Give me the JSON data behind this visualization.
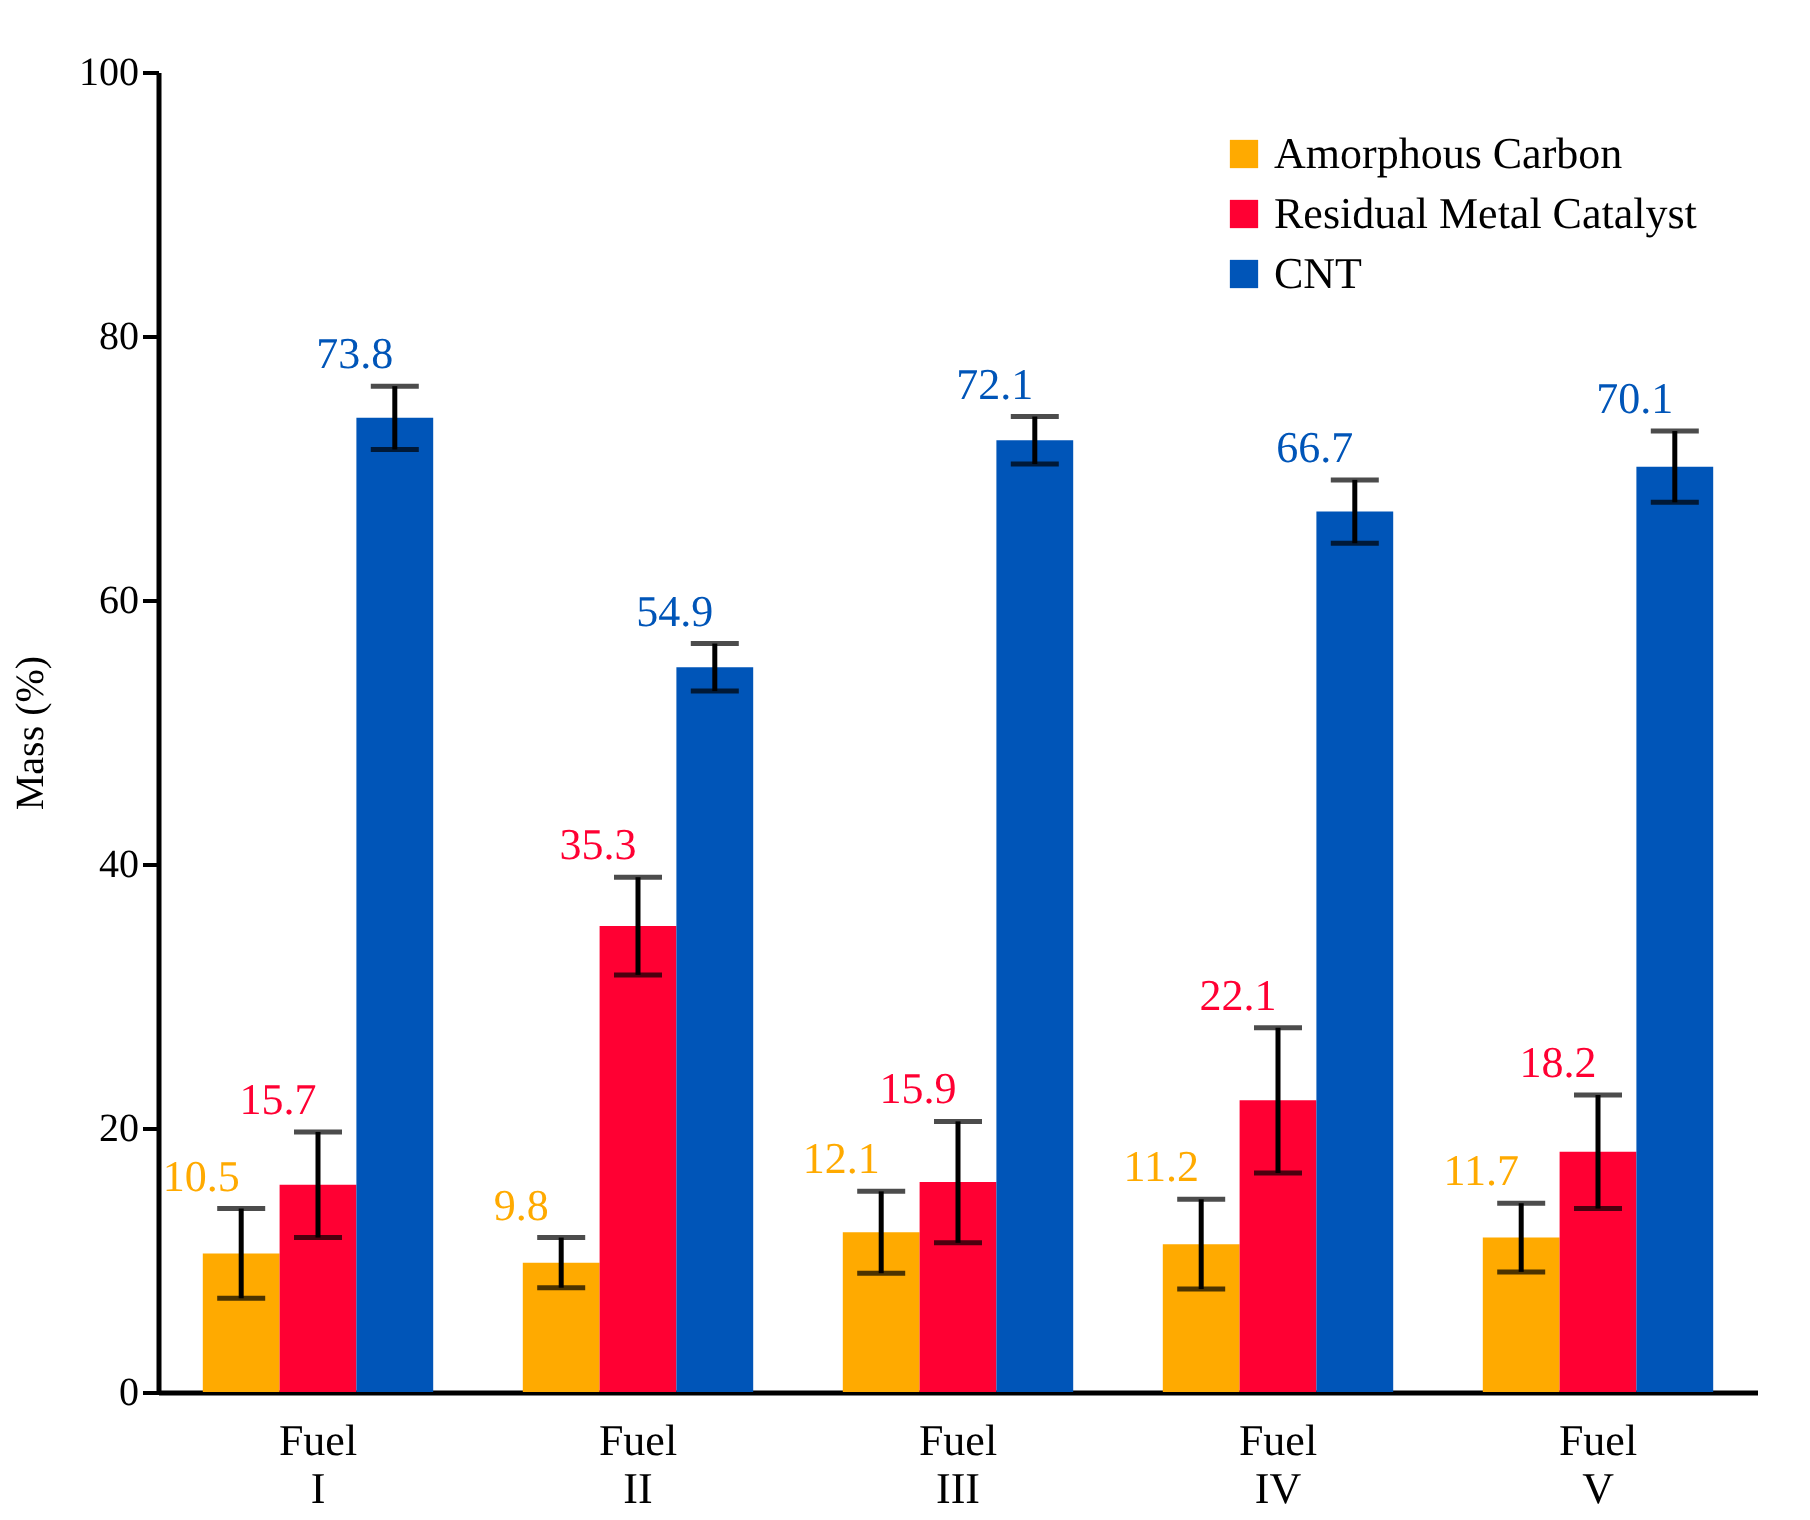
{
  "chart_data": {
    "type": "bar",
    "ylabel": "Mass (%)",
    "categories": [
      "Fuel I",
      "Fuel II",
      "Fuel III",
      "Fuel IV",
      "Fuel V"
    ],
    "series": [
      {
        "name": "Amorphous Carbon",
        "color": "#ffaa00",
        "values": [
          10.5,
          9.8,
          12.1,
          11.2,
          11.7
        ],
        "errors": [
          3.4,
          1.9,
          3.1,
          3.4,
          2.6
        ]
      },
      {
        "name": "Residual Metal Catalyst",
        "color": "#ff0033",
        "values": [
          15.7,
          35.3,
          15.9,
          22.1,
          18.2
        ],
        "errors": [
          4.0,
          3.7,
          4.6,
          5.5,
          4.3
        ]
      },
      {
        "name": "CNT",
        "color": "#0055b8",
        "values": [
          73.8,
          54.9,
          72.1,
          66.7,
          70.1
        ],
        "errors": [
          2.4,
          1.8,
          1.8,
          2.4,
          2.7
        ]
      }
    ],
    "ylim": [
      0,
      100
    ],
    "yticks": [
      0,
      20,
      40,
      60,
      80,
      100
    ],
    "grid": false,
    "legend": "top right",
    "data_labels": true
  }
}
